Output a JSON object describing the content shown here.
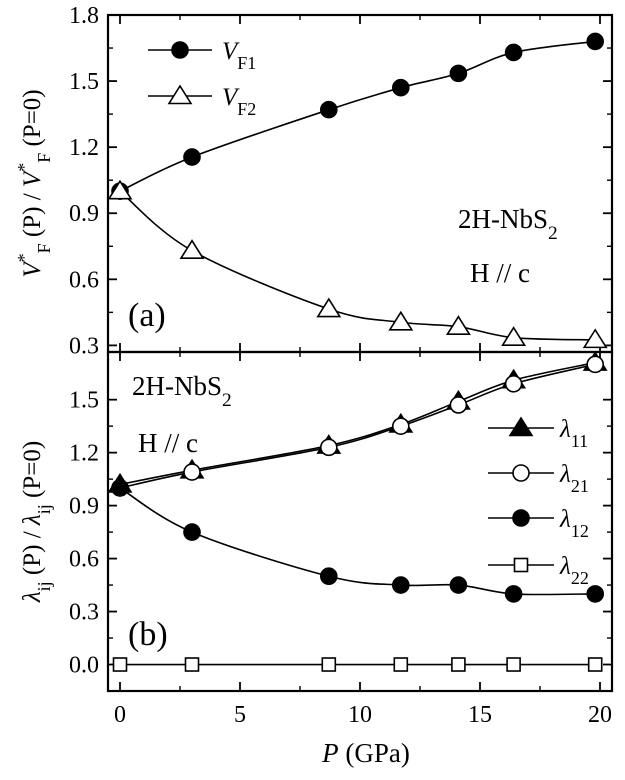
{
  "chart_data": [
    {
      "type": "line",
      "panel_label": "(a)",
      "title": "",
      "xlabel": "",
      "ylabel": {
        "base": "V",
        "star": "*",
        "sub": "F",
        "mid": " (P) / ",
        "base2": "V",
        "star2": "*",
        "sub2": "F",
        "end": " (P=0)"
      },
      "xlim": [
        -0.5,
        20.5
      ],
      "ylim": [
        0.27,
        1.8
      ],
      "yticks": [
        0.3,
        0.6,
        0.9,
        1.2,
        1.5,
        1.8
      ],
      "ytick_labels": [
        "0.3",
        "0.6",
        "0.9",
        "1.2",
        "1.5",
        "1.8"
      ],
      "annotation_material": {
        "base": "2H-NbS",
        "sub": "2"
      },
      "annotation_field": "H // c",
      "legend_position": "top-left",
      "series": [
        {
          "name": {
            "base": "V",
            "sub": "F1"
          },
          "marker": "filled-circle",
          "x": [
            0,
            3,
            8.7,
            11.7,
            14.1,
            16.4,
            19.8
          ],
          "y": [
            1.0,
            1.155,
            1.37,
            1.47,
            1.535,
            1.63,
            1.68
          ]
        },
        {
          "name": {
            "base": "V",
            "sub": "F2"
          },
          "marker": "open-triangle",
          "x": [
            0,
            3,
            8.7,
            11.7,
            14.1,
            16.4,
            19.8
          ],
          "y": [
            1.0,
            0.73,
            0.465,
            0.405,
            0.385,
            0.335,
            0.325
          ]
        }
      ]
    },
    {
      "type": "line",
      "panel_label": "(b)",
      "title": "",
      "xlabel": {
        "italic": "P",
        "rest": " (GPa)"
      },
      "ylabel": {
        "base": "λ",
        "sub": "ij",
        "mid": " (P) / ",
        "base2": "λ",
        "sub2": "ij",
        "end": " (P=0)"
      },
      "xlim": [
        -0.5,
        20.5
      ],
      "ylim": [
        -0.15,
        1.77
      ],
      "xticks": [
        0,
        5,
        10,
        15,
        20
      ],
      "xtick_labels": [
        "0",
        "5",
        "10",
        "15",
        "20"
      ],
      "yticks": [
        0.0,
        0.3,
        0.6,
        0.9,
        1.2,
        1.5
      ],
      "ytick_labels": [
        "0.0",
        "0.3",
        "0.6",
        "0.9",
        "1.2",
        "1.5"
      ],
      "annotation_material": {
        "base": "2H-NbS",
        "sub": "2"
      },
      "annotation_field": "H // c",
      "legend_position": "right",
      "series": [
        {
          "name": {
            "base": "λ",
            "sub": "11"
          },
          "marker": "filled-triangle",
          "x": [
            0,
            3,
            8.7,
            11.7,
            14.1,
            16.4,
            19.8
          ],
          "y": [
            1.02,
            1.1,
            1.24,
            1.36,
            1.49,
            1.61,
            1.71
          ]
        },
        {
          "name": {
            "base": "λ",
            "sub": "21"
          },
          "marker": "open-circle",
          "x": [
            0,
            3,
            8.7,
            11.7,
            14.1,
            16.4,
            19.8
          ],
          "y": [
            1.0,
            1.09,
            1.23,
            1.35,
            1.47,
            1.59,
            1.7
          ]
        },
        {
          "name": {
            "base": "λ",
            "sub": "12"
          },
          "marker": "filled-circle",
          "x": [
            0,
            3,
            8.7,
            11.7,
            14.1,
            16.4,
            19.8
          ],
          "y": [
            1.0,
            0.75,
            0.5,
            0.45,
            0.45,
            0.4,
            0.4
          ]
        },
        {
          "name": {
            "base": "λ",
            "sub": "22"
          },
          "marker": "open-square",
          "x": [
            0,
            3,
            8.7,
            11.7,
            14.1,
            16.4,
            19.8
          ],
          "y": [
            0,
            0,
            0,
            0,
            0,
            0,
            0
          ]
        }
      ]
    }
  ]
}
